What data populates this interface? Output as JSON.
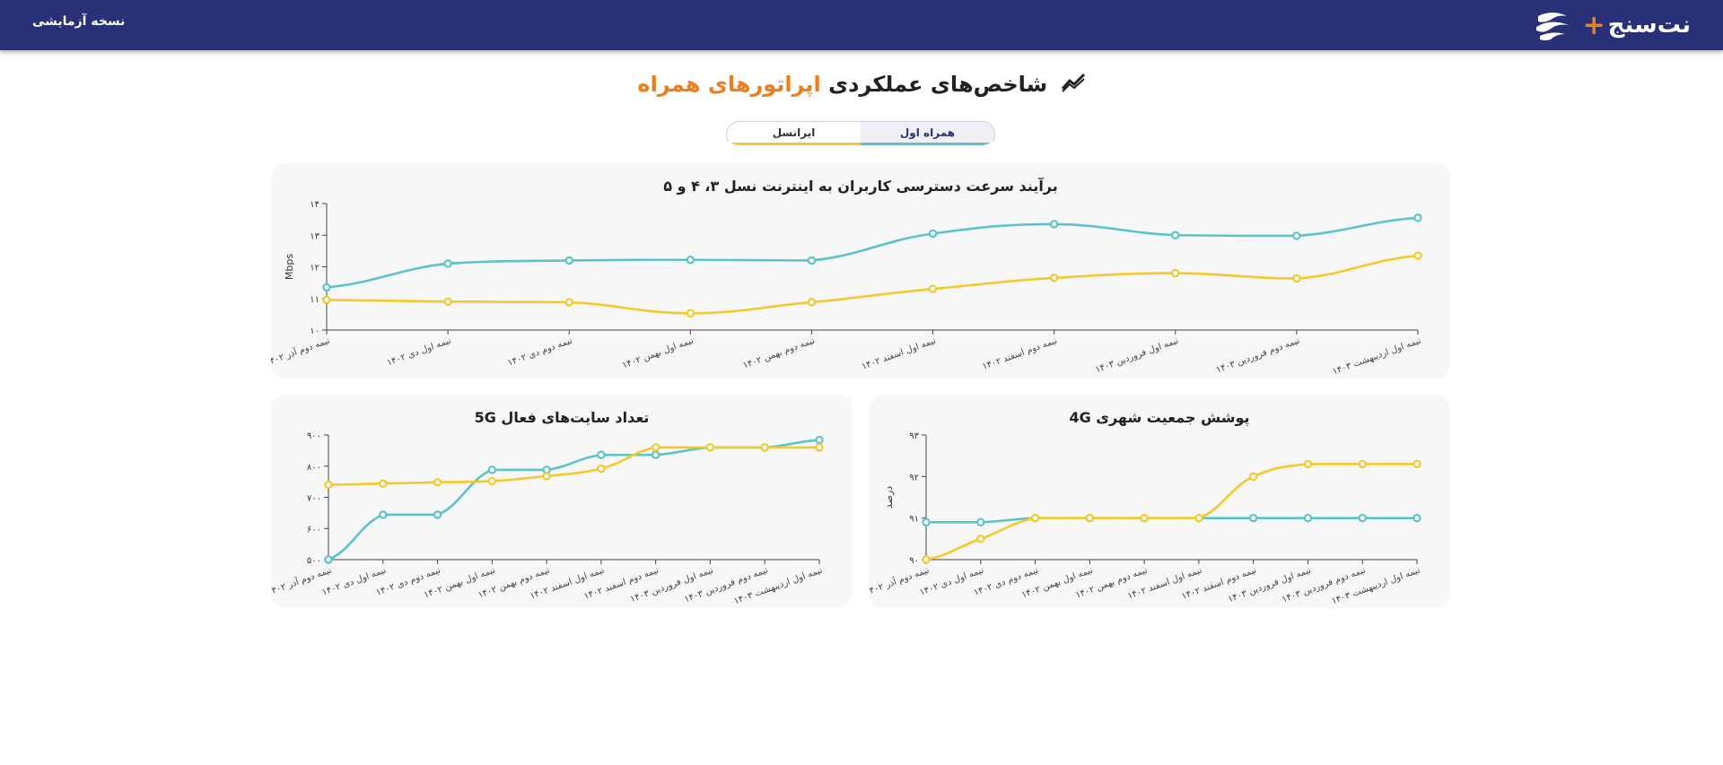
{
  "header": {
    "beta_label": "نسخه آزمایشی",
    "brand_name": "نت‌سنج"
  },
  "page": {
    "title_main": "شاخص‌های عملکردی",
    "title_accent": "اپراتورهای همراه"
  },
  "tabs": [
    {
      "label": "همراه اول"
    },
    {
      "label": "ایرانسل"
    }
  ],
  "colors": {
    "series_a": "#5bc3cb",
    "series_b": "#f5c92b",
    "header_bg": "#283178",
    "accent": "#ee7e1a"
  },
  "chart_data": [
    {
      "id": "speed",
      "type": "line",
      "title": "برآیند سرعت دسترسی کاربران به اینترنت نسل ۳، ۴ و ۵",
      "ylabel": "Mbps",
      "xlabel": "",
      "ylim": [
        10,
        14
      ],
      "yticks": [
        "۱۰",
        "۱۱",
        "۱۲",
        "۱۳",
        "۱۴"
      ],
      "grid": false,
      "categories": [
        "نیمه دوم آذر ۱۴۰۲",
        "نیمه اول دی ۱۴۰۲",
        "نیمه دوم دی ۱۴۰۲",
        "نیمه اول بهمن ۱۴۰۲",
        "نیمه دوم بهمن ۱۴۰۲",
        "نیمه اول اسفند ۱۴۰۲",
        "نیمه دوم اسفند ۱۴۰۲",
        "نیمه اول فروردین ۱۴۰۳",
        "نیمه دوم فروردین ۱۴۰۳",
        "نیمه اول اردیبهشت ۱۴۰۳"
      ],
      "series": [
        {
          "color": "series_a",
          "values": [
            11.35,
            12.1,
            12.2,
            12.22,
            12.2,
            13.05,
            13.35,
            13.0,
            12.98,
            13.55
          ]
        },
        {
          "color": "series_b",
          "values": [
            10.95,
            10.9,
            10.88,
            10.53,
            10.88,
            11.3,
            11.65,
            11.8,
            11.63,
            12.35
          ]
        }
      ]
    },
    {
      "id": "sites5g",
      "type": "line",
      "title": "تعداد سایت‌های فعال 5G",
      "ylabel": "",
      "xlabel": "",
      "ylim": [
        400,
        900
      ],
      "yticks": [
        "۵۰۰",
        "۶۰۰",
        "۷۰۰",
        "۸۰۰",
        "۹۰۰"
      ],
      "grid": false,
      "categories": [
        "نیمه دوم آذر ۱۴۰۲",
        "نیمه اول دی ۱۴۰۲",
        "نیمه دوم دی ۱۴۰۲",
        "نیمه اول بهمن ۱۴۰۲",
        "نیمه دوم بهمن ۱۴۰۲",
        "نیمه اول اسفند ۱۴۰۲",
        "نیمه دوم اسفند ۱۴۰۲",
        "نیمه اول فروردین ۱۴۰۳",
        "نیمه دوم فروردین ۱۴۰۳",
        "نیمه اول اردیبهشت ۱۴۰۳"
      ],
      "series": [
        {
          "color": "series_a",
          "values": [
            400,
            580,
            580,
            760,
            760,
            820,
            820,
            850,
            850,
            880
          ]
        },
        {
          "color": "series_b",
          "values": [
            700,
            705,
            710,
            715,
            735,
            765,
            850,
            850,
            850,
            850
          ]
        }
      ]
    },
    {
      "id": "coverage4g",
      "type": "line",
      "title": "پوشش جمعیت شهری 4G",
      "ylabel": "درصد",
      "xlabel": "",
      "ylim": [
        90,
        93
      ],
      "yticks": [
        "۹۰",
        "۹۱",
        "۹۲",
        "۹۳"
      ],
      "grid": false,
      "categories": [
        "نیمه دوم آذر ۱۴۰۲",
        "نیمه اول دی ۱۴۰۲",
        "نیمه دوم دی ۱۴۰۲",
        "نیمه اول بهمن ۱۴۰۲",
        "نیمه دوم بهمن ۱۴۰۲",
        "نیمه اول اسفند ۱۴۰۲",
        "نیمه دوم اسفند ۱۴۰۲",
        "نیمه اول فروردین ۱۴۰۳",
        "نیمه دوم فروردین ۱۴۰۳",
        "نیمه اول اردیبهشت ۱۴۰۳"
      ],
      "series": [
        {
          "color": "series_a",
          "values": [
            90.9,
            90.9,
            91.0,
            91.0,
            91.0,
            91.0,
            91.0,
            91.0,
            91.0,
            91.0
          ]
        },
        {
          "color": "series_b",
          "values": [
            90.0,
            90.5,
            91.0,
            91.0,
            91.0,
            91.0,
            92.0,
            92.3,
            92.3,
            92.3
          ]
        }
      ]
    }
  ]
}
